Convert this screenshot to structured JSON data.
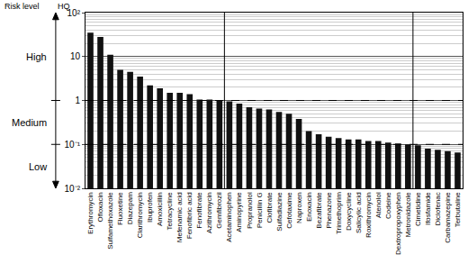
{
  "chart_data": {
    "type": "bar",
    "y_label": "HQ",
    "risk_title": "Risk level",
    "risk_levels": [
      "High",
      "Medium",
      "Low"
    ],
    "thresholds": [
      1,
      0.1
    ],
    "categories": [
      "Erythromycin",
      "Ofloxacin",
      "Sulfamethoxazole",
      "Fluoxetine",
      "Diazepam",
      "Clarithromycin",
      "Ibuprofen",
      "Amoxicillin",
      "Tetracycline",
      "Mefenamic acid",
      "Fenofibric acid",
      "Fenofibrate",
      "Azithromycin",
      "Gemfibrozil",
      "Acetaminophen",
      "Aminopyrine",
      "Propranolol",
      "Penicillin G",
      "Clofibrate",
      "Sulfadiazine",
      "Cefotaxime",
      "Naproxen",
      "Enoxacin",
      "Bezafibrate",
      "Phenazone",
      "Trimethoprim",
      "Doxycycline",
      "Salicylic acid",
      "Roxithromycin",
      "Atenolol",
      "Codeine",
      "Dextropropoxyphen",
      "Metronidazole",
      "Cimetidine",
      "Ifosfamide",
      "Diclofenac",
      "Carbamazepine",
      "Terbutaline"
    ],
    "values": [
      35,
      28,
      11,
      5,
      4.5,
      3.5,
      2.2,
      1.9,
      1.5,
      1.5,
      1.4,
      1.05,
      1.05,
      1.0,
      0.95,
      0.85,
      0.7,
      0.65,
      0.62,
      0.55,
      0.5,
      0.38,
      0.2,
      0.17,
      0.15,
      0.14,
      0.13,
      0.13,
      0.12,
      0.12,
      0.11,
      0.105,
      0.1,
      0.095,
      0.08,
      0.075,
      0.07,
      0.065
    ],
    "color": "#111111",
    "log": "y",
    "ylim": [
      0.01,
      100
    ],
    "yticks": [
      {
        "value": 0.01,
        "label": "10⁻²"
      },
      {
        "value": 0.1,
        "label": "10⁻¹"
      },
      1,
      10,
      {
        "value": 100,
        "label": "10²"
      }
    ],
    "grid": true
  }
}
